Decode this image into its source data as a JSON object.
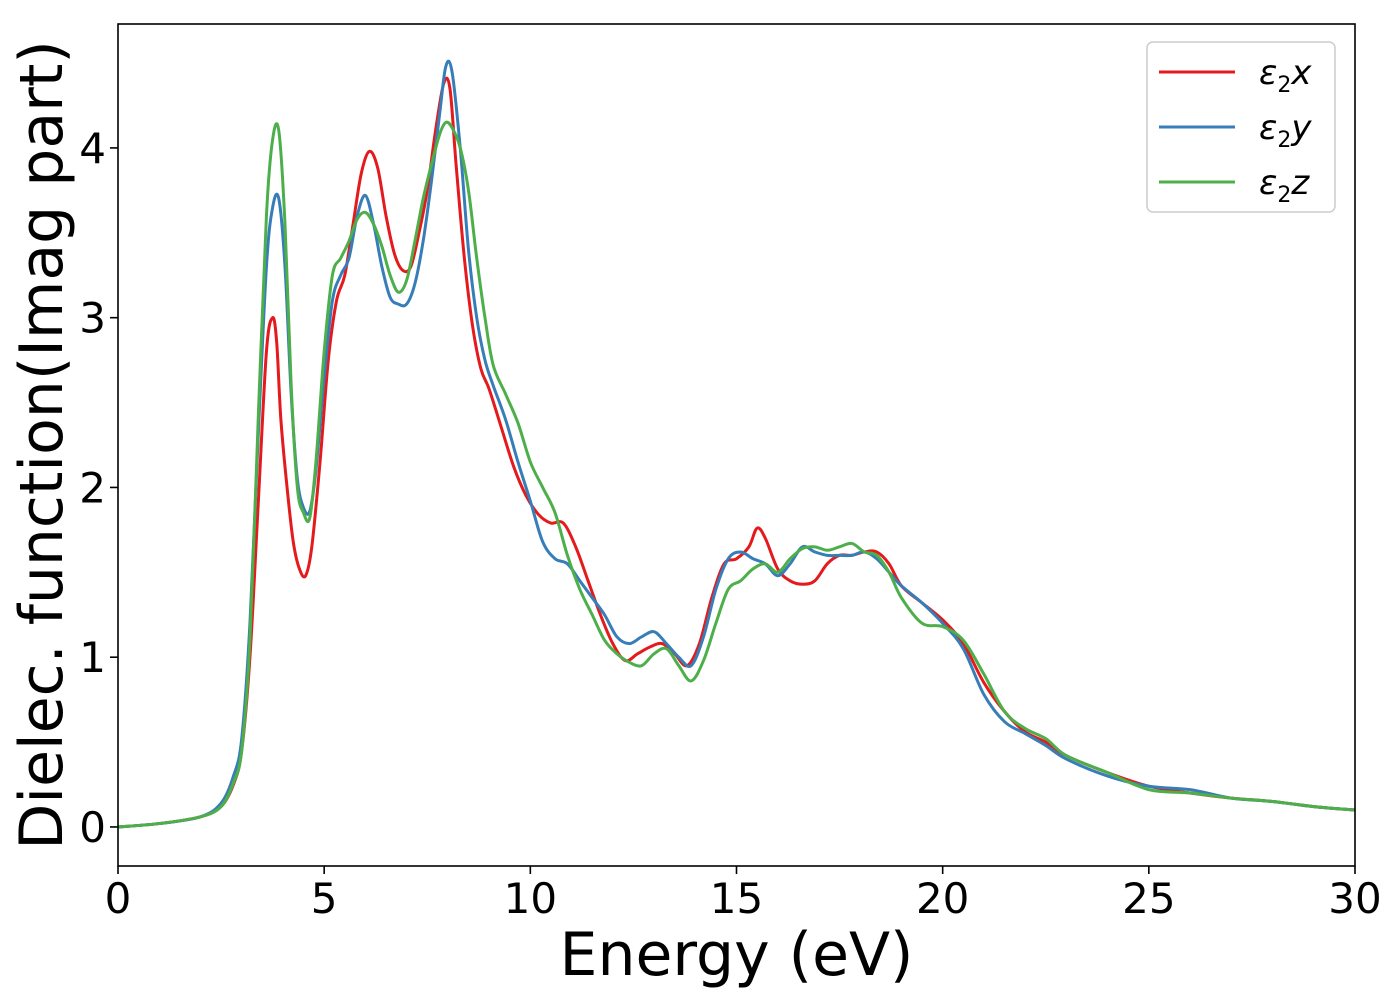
{
  "chart_data": {
    "type": "line",
    "xlabel": "Energy (eV)",
    "ylabel": "Dielec. function(Imag part)",
    "xlim": [
      0,
      30
    ],
    "ylim": [
      -0.23,
      4.73
    ],
    "xticks": [
      0,
      5,
      10,
      15,
      20,
      25,
      30
    ],
    "yticks": [
      0,
      1,
      2,
      3,
      4
    ],
    "grid": false,
    "legend_position": "top-right",
    "series": [
      {
        "name": "ε2x",
        "legend": {
          "main": "ε",
          "sub": "2",
          "axis": "x"
        },
        "color": "#e41a1c",
        "x": [
          0,
          1,
          2,
          2.5,
          2.8,
          3.0,
          3.2,
          3.4,
          3.6,
          3.75,
          3.85,
          3.95,
          4.1,
          4.25,
          4.4,
          4.55,
          4.7,
          4.9,
          5.1,
          5.3,
          5.5,
          5.7,
          5.9,
          6.1,
          6.3,
          6.5,
          6.7,
          6.9,
          7.1,
          7.3,
          7.5,
          7.7,
          7.9,
          8.05,
          8.2,
          8.4,
          8.6,
          8.8,
          9.0,
          9.3,
          9.6,
          9.9,
          10.2,
          10.5,
          10.8,
          11.1,
          11.4,
          11.7,
          12.0,
          12.3,
          12.6,
          12.9,
          13.2,
          13.5,
          13.8,
          14.1,
          14.4,
          14.7,
          15.0,
          15.3,
          15.5,
          15.7,
          16.0,
          16.3,
          16.6,
          16.9,
          17.2,
          17.5,
          17.8,
          18.1,
          18.4,
          18.7,
          19.0,
          19.5,
          20.0,
          20.5,
          21.0,
          21.5,
          22.0,
          22.5,
          23.0,
          24.0,
          25.0,
          26.0,
          27.0,
          28.0,
          29.0,
          30.0
        ],
        "y": [
          0,
          0.02,
          0.06,
          0.12,
          0.25,
          0.45,
          1.0,
          1.9,
          2.8,
          3.0,
          2.85,
          2.4,
          2.0,
          1.68,
          1.52,
          1.48,
          1.65,
          2.15,
          2.75,
          3.1,
          3.25,
          3.55,
          3.85,
          3.98,
          3.88,
          3.6,
          3.38,
          3.28,
          3.3,
          3.5,
          3.75,
          4.1,
          4.38,
          4.35,
          3.9,
          3.35,
          2.95,
          2.7,
          2.58,
          2.35,
          2.12,
          1.95,
          1.84,
          1.79,
          1.79,
          1.65,
          1.45,
          1.25,
          1.08,
          0.98,
          1.02,
          1.06,
          1.08,
          1.02,
          0.95,
          1.08,
          1.35,
          1.55,
          1.58,
          1.65,
          1.76,
          1.7,
          1.52,
          1.45,
          1.43,
          1.45,
          1.55,
          1.6,
          1.6,
          1.62,
          1.62,
          1.55,
          1.42,
          1.32,
          1.22,
          1.08,
          0.85,
          0.68,
          0.56,
          0.5,
          0.42,
          0.32,
          0.24,
          0.2,
          0.17,
          0.15,
          0.12,
          0.1
        ]
      },
      {
        "name": "ε2y",
        "legend": {
          "main": "ε",
          "sub": "2",
          "axis": "y"
        },
        "color": "#377eb8",
        "x": [
          0,
          1,
          2,
          2.5,
          2.8,
          3.0,
          3.2,
          3.4,
          3.6,
          3.75,
          3.9,
          4.05,
          4.2,
          4.35,
          4.5,
          4.65,
          4.8,
          5.0,
          5.2,
          5.4,
          5.6,
          5.8,
          6.0,
          6.2,
          6.4,
          6.6,
          6.8,
          7.0,
          7.2,
          7.4,
          7.6,
          7.8,
          7.95,
          8.1,
          8.3,
          8.5,
          8.7,
          8.9,
          9.1,
          9.4,
          9.7,
          10.0,
          10.3,
          10.6,
          10.9,
          11.2,
          11.5,
          11.8,
          12.1,
          12.4,
          12.7,
          13.0,
          13.3,
          13.6,
          13.9,
          14.2,
          14.5,
          14.8,
          15.1,
          15.4,
          15.7,
          16.0,
          16.3,
          16.6,
          16.9,
          17.2,
          17.5,
          17.8,
          18.1,
          18.4,
          18.7,
          19.0,
          19.5,
          20.0,
          20.5,
          21.0,
          21.5,
          22.0,
          22.5,
          23.0,
          24.0,
          25.0,
          26.0,
          27.0,
          28.0,
          29.0,
          30.0
        ],
        "y": [
          0,
          0.02,
          0.06,
          0.14,
          0.3,
          0.52,
          1.2,
          2.3,
          3.3,
          3.65,
          3.7,
          3.3,
          2.55,
          2.05,
          1.88,
          1.86,
          2.1,
          2.65,
          3.1,
          3.25,
          3.35,
          3.6,
          3.72,
          3.55,
          3.3,
          3.12,
          3.08,
          3.08,
          3.2,
          3.45,
          3.8,
          4.2,
          4.48,
          4.45,
          4.0,
          3.4,
          3.0,
          2.75,
          2.6,
          2.4,
          2.15,
          1.92,
          1.68,
          1.58,
          1.55,
          1.45,
          1.35,
          1.25,
          1.12,
          1.08,
          1.12,
          1.15,
          1.08,
          1.0,
          0.95,
          1.12,
          1.4,
          1.58,
          1.62,
          1.58,
          1.55,
          1.48,
          1.55,
          1.65,
          1.62,
          1.6,
          1.6,
          1.6,
          1.62,
          1.58,
          1.5,
          1.42,
          1.32,
          1.2,
          1.05,
          0.78,
          0.62,
          0.55,
          0.48,
          0.4,
          0.3,
          0.24,
          0.22,
          0.17,
          0.15,
          0.12,
          0.1
        ]
      },
      {
        "name": "ε2z",
        "legend": {
          "main": "ε",
          "sub": "2",
          "axis": "z"
        },
        "color": "#4daf4a",
        "x": [
          0,
          1,
          2,
          2.5,
          2.8,
          3.0,
          3.2,
          3.4,
          3.6,
          3.75,
          3.9,
          4.05,
          4.2,
          4.35,
          4.5,
          4.65,
          4.8,
          5.0,
          5.2,
          5.4,
          5.6,
          5.8,
          6.0,
          6.2,
          6.4,
          6.6,
          6.8,
          7.0,
          7.2,
          7.4,
          7.6,
          7.8,
          7.95,
          8.1,
          8.3,
          8.5,
          8.7,
          8.9,
          9.1,
          9.4,
          9.7,
          10.0,
          10.3,
          10.6,
          10.9,
          11.2,
          11.5,
          11.8,
          12.1,
          12.4,
          12.7,
          13.0,
          13.3,
          13.6,
          13.9,
          14.2,
          14.5,
          14.8,
          15.1,
          15.4,
          15.7,
          16.0,
          16.3,
          16.6,
          16.9,
          17.2,
          17.5,
          17.8,
          18.1,
          18.4,
          18.7,
          19.0,
          19.5,
          20.0,
          20.5,
          21.0,
          21.5,
          22.0,
          22.5,
          23.0,
          24.0,
          25.0,
          26.0,
          27.0,
          28.0,
          29.0,
          30.0
        ],
        "y": [
          0,
          0.02,
          0.06,
          0.12,
          0.26,
          0.45,
          1.1,
          2.4,
          3.6,
          4.05,
          4.1,
          3.55,
          2.6,
          2.0,
          1.85,
          1.82,
          2.15,
          2.8,
          3.25,
          3.35,
          3.45,
          3.58,
          3.62,
          3.55,
          3.42,
          3.25,
          3.15,
          3.22,
          3.45,
          3.7,
          3.9,
          4.08,
          4.15,
          4.12,
          4.0,
          3.75,
          3.35,
          3.0,
          2.72,
          2.55,
          2.38,
          2.15,
          2.0,
          1.85,
          1.6,
          1.4,
          1.25,
          1.1,
          1.02,
          0.97,
          0.95,
          1.02,
          1.05,
          0.95,
          0.86,
          0.98,
          1.2,
          1.4,
          1.45,
          1.52,
          1.55,
          1.5,
          1.58,
          1.64,
          1.65,
          1.63,
          1.65,
          1.67,
          1.62,
          1.6,
          1.5,
          1.35,
          1.2,
          1.18,
          1.1,
          0.9,
          0.68,
          0.58,
          0.52,
          0.42,
          0.32,
          0.22,
          0.2,
          0.17,
          0.15,
          0.12,
          0.1
        ]
      }
    ]
  }
}
